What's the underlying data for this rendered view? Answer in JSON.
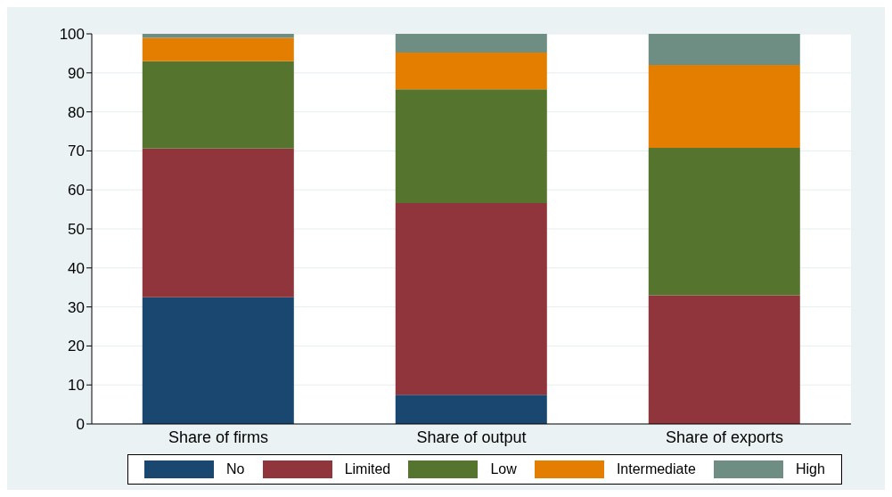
{
  "chart_data": {
    "type": "bar",
    "stacked": true,
    "categories": [
      "Share of firms",
      "Share of output",
      "Share of exports"
    ],
    "series": [
      {
        "name": "No",
        "color": "#1a476f",
        "values": [
          32.5,
          7.5,
          0
        ]
      },
      {
        "name": "Limited",
        "color": "#90353b",
        "values": [
          38.1,
          49.1,
          33.0
        ]
      },
      {
        "name": "Low",
        "color": "#55752f",
        "values": [
          22.4,
          29.2,
          37.8
        ]
      },
      {
        "name": "Intermediate",
        "color": "#e37e00",
        "values": [
          6.0,
          9.4,
          21.2
        ]
      },
      {
        "name": "High",
        "color": "#6e8e84",
        "values": [
          1.0,
          4.8,
          8.2
        ]
      }
    ],
    "ylim": [
      0,
      100
    ],
    "yticks": [
      0,
      10,
      20,
      30,
      40,
      50,
      60,
      70,
      80,
      90,
      100
    ],
    "grid": "y",
    "legend": "bottom"
  }
}
